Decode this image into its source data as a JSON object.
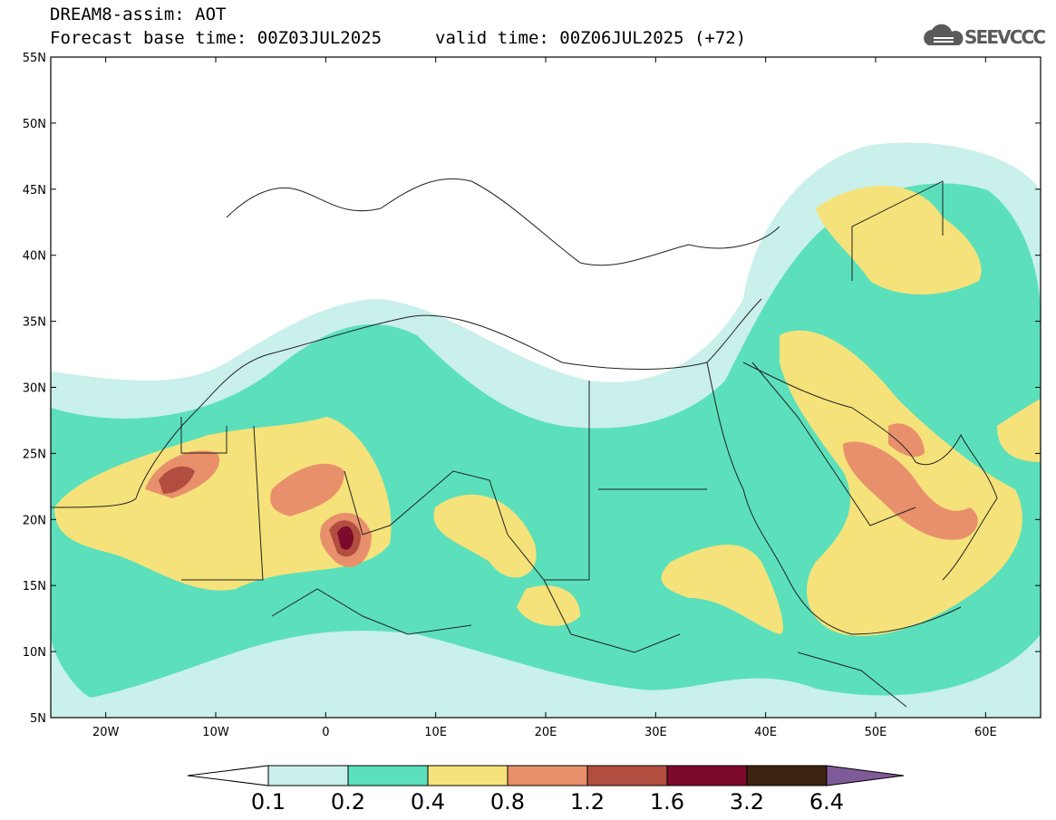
{
  "header": {
    "title": "DREAM8-assim: AOT",
    "base_time_label": "Forecast base time: 00Z03JUL2025",
    "valid_time_label": "valid time: 00Z06JUL2025 (+72)",
    "logo_text": "SEEVCCC"
  },
  "map": {
    "lat_range": [
      5,
      55
    ],
    "lon_range": [
      -25,
      65
    ],
    "lat_labels": [
      "55N",
      "50N",
      "45N",
      "40N",
      "35N",
      "30N",
      "25N",
      "20N",
      "15N",
      "10N",
      "5N"
    ],
    "lon_labels": [
      "20W",
      "10W",
      "0",
      "10E",
      "20E",
      "30E",
      "40E",
      "50E",
      "60E"
    ]
  },
  "colorbar": {
    "labels": [
      "0.1",
      "0.2",
      "0.4",
      "0.8",
      "1.2",
      "1.6",
      "3.2",
      "6.4"
    ],
    "colors": [
      "#ffffff",
      "#c9f0ea",
      "#5be0bb",
      "#f6e27a",
      "#e8906b",
      "#b24e3f",
      "#7d0a2d",
      "#3c2210",
      "#7f5a98"
    ]
  },
  "colors": {
    "frame": "#000000",
    "border": "#222222"
  }
}
